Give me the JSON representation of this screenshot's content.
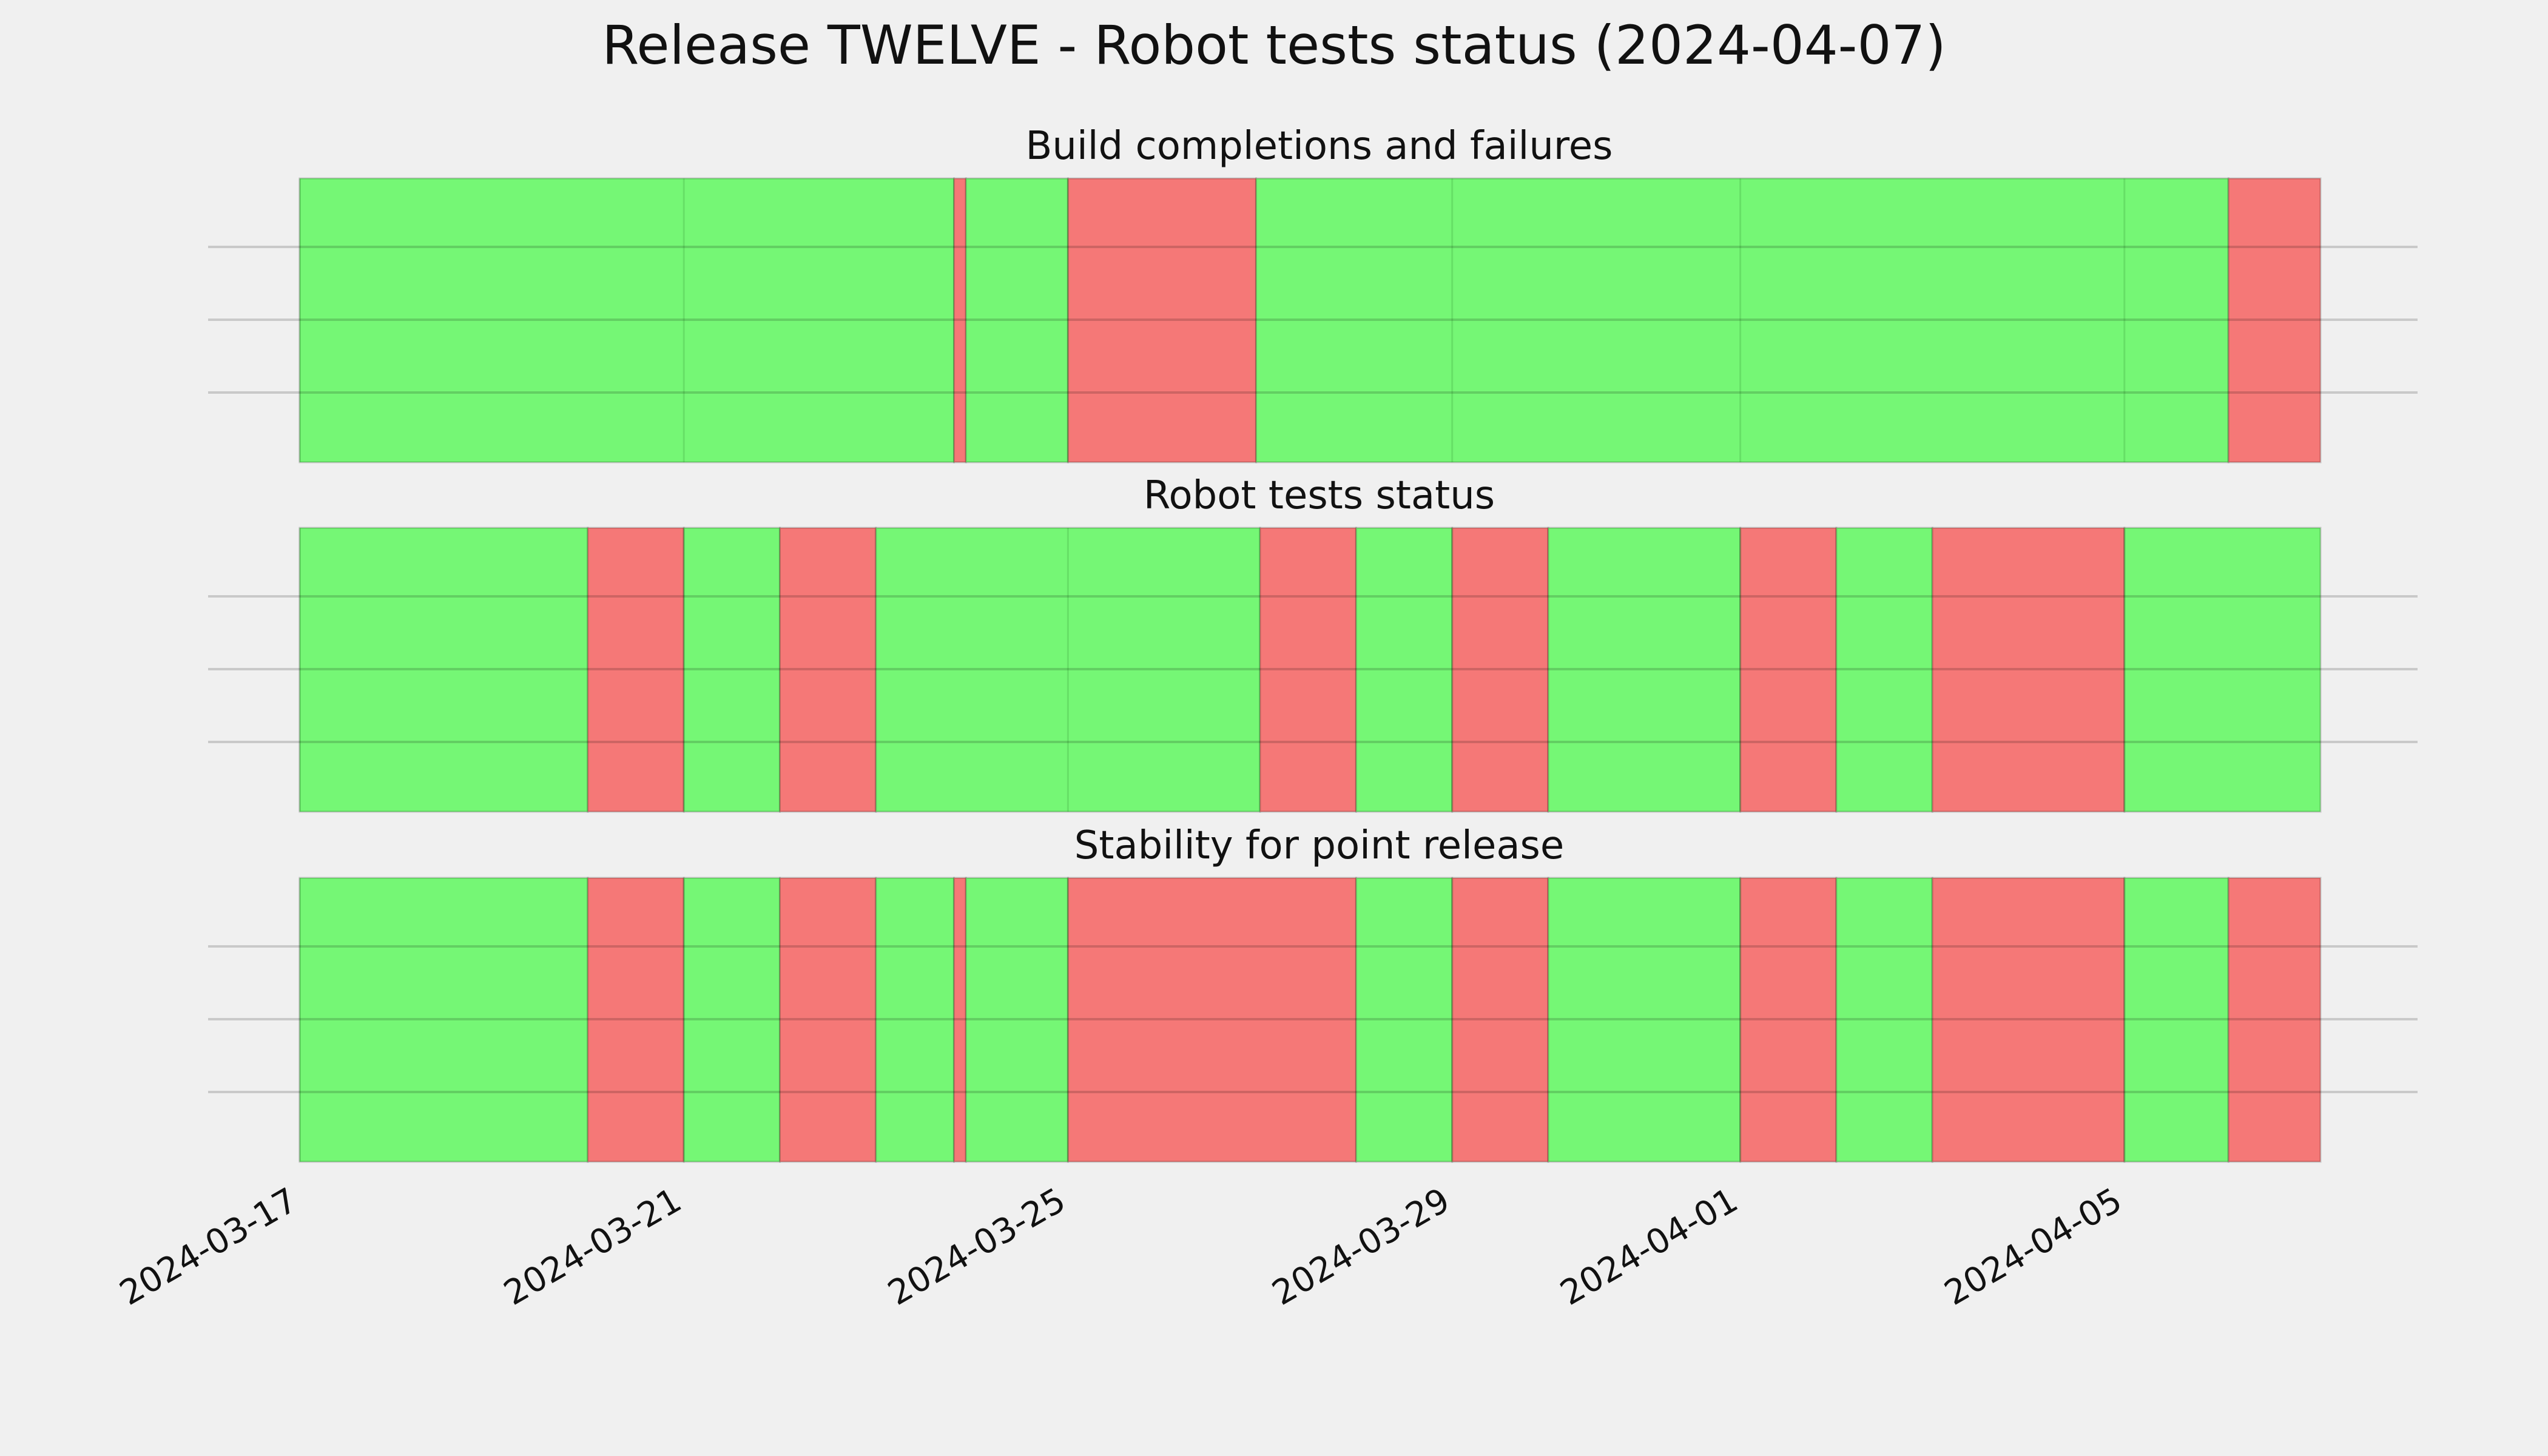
{
  "title": "Release TWELVE - Robot tests status (2024-04-07)",
  "colors": {
    "pass": "#75f775",
    "fail": "#f57877",
    "background": "#f0f0f0",
    "grid": "#cbcbcb",
    "text": "#111111"
  },
  "x_axis": {
    "start": "2024-03-17",
    "end": "2024-04-07T01:00",
    "ticks": [
      "2024-03-17",
      "2024-03-21",
      "2024-03-25",
      "2024-03-29",
      "2024-04-01",
      "2024-04-05"
    ],
    "tick_rotation_deg": -30
  },
  "chart_data": [
    {
      "type": "timeline",
      "title": "Build completions and failures",
      "grid": true,
      "segments": [
        {
          "start": "2024-03-17T00:00",
          "end": "2024-03-23T19:30",
          "status": "pass"
        },
        {
          "start": "2024-03-23T19:30",
          "end": "2024-03-23T22:30",
          "status": "fail"
        },
        {
          "start": "2024-03-23T22:30",
          "end": "2024-03-25T00:00",
          "status": "pass"
        },
        {
          "start": "2024-03-25T00:00",
          "end": "2024-03-26T23:00",
          "status": "fail"
        },
        {
          "start": "2024-03-26T23:00",
          "end": "2024-04-06T02:00",
          "status": "pass"
        },
        {
          "start": "2024-04-06T02:00",
          "end": "2024-04-07T01:00",
          "status": "fail"
        }
      ]
    },
    {
      "type": "timeline",
      "title": "Robot tests status",
      "grid": true,
      "segments": [
        {
          "start": "2024-03-17T00:00",
          "end": "2024-03-20T00:00",
          "status": "pass"
        },
        {
          "start": "2024-03-20T00:00",
          "end": "2024-03-21T00:00",
          "status": "fail"
        },
        {
          "start": "2024-03-21T00:00",
          "end": "2024-03-22T00:00",
          "status": "pass"
        },
        {
          "start": "2024-03-22T00:00",
          "end": "2024-03-23T00:00",
          "status": "fail"
        },
        {
          "start": "2024-03-23T00:00",
          "end": "2024-03-27T00:00",
          "status": "pass"
        },
        {
          "start": "2024-03-27T00:00",
          "end": "2024-03-28T00:00",
          "status": "fail"
        },
        {
          "start": "2024-03-28T00:00",
          "end": "2024-03-29T00:00",
          "status": "pass"
        },
        {
          "start": "2024-03-29T00:00",
          "end": "2024-03-30T00:00",
          "status": "fail"
        },
        {
          "start": "2024-03-30T00:00",
          "end": "2024-04-01T00:00",
          "status": "pass"
        },
        {
          "start": "2024-04-01T00:00",
          "end": "2024-04-02T00:00",
          "status": "fail"
        },
        {
          "start": "2024-04-02T00:00",
          "end": "2024-04-03T00:00",
          "status": "pass"
        },
        {
          "start": "2024-04-03T00:00",
          "end": "2024-04-05T00:00",
          "status": "fail"
        },
        {
          "start": "2024-04-05T00:00",
          "end": "2024-04-07T01:00",
          "status": "pass"
        }
      ]
    },
    {
      "type": "timeline",
      "title": "Stability for point release",
      "grid": true,
      "segments": [
        {
          "start": "2024-03-17T00:00",
          "end": "2024-03-20T00:00",
          "status": "pass"
        },
        {
          "start": "2024-03-20T00:00",
          "end": "2024-03-21T00:00",
          "status": "fail"
        },
        {
          "start": "2024-03-21T00:00",
          "end": "2024-03-22T00:00",
          "status": "pass"
        },
        {
          "start": "2024-03-22T00:00",
          "end": "2024-03-23T00:00",
          "status": "fail"
        },
        {
          "start": "2024-03-23T00:00",
          "end": "2024-03-23T19:30",
          "status": "pass"
        },
        {
          "start": "2024-03-23T19:30",
          "end": "2024-03-23T22:30",
          "status": "fail"
        },
        {
          "start": "2024-03-23T22:30",
          "end": "2024-03-25T00:00",
          "status": "pass"
        },
        {
          "start": "2024-03-25T00:00",
          "end": "2024-03-28T00:00",
          "status": "fail"
        },
        {
          "start": "2024-03-28T00:00",
          "end": "2024-03-29T00:00",
          "status": "pass"
        },
        {
          "start": "2024-03-29T00:00",
          "end": "2024-03-30T00:00",
          "status": "fail"
        },
        {
          "start": "2024-03-30T00:00",
          "end": "2024-04-01T00:00",
          "status": "pass"
        },
        {
          "start": "2024-04-01T00:00",
          "end": "2024-04-02T00:00",
          "status": "fail"
        },
        {
          "start": "2024-04-02T00:00",
          "end": "2024-04-03T00:00",
          "status": "pass"
        },
        {
          "start": "2024-04-03T00:00",
          "end": "2024-04-05T00:00",
          "status": "fail"
        },
        {
          "start": "2024-04-05T00:00",
          "end": "2024-04-06T02:00",
          "status": "pass"
        },
        {
          "start": "2024-04-06T02:00",
          "end": "2024-04-07T01:00",
          "status": "fail"
        }
      ]
    }
  ]
}
